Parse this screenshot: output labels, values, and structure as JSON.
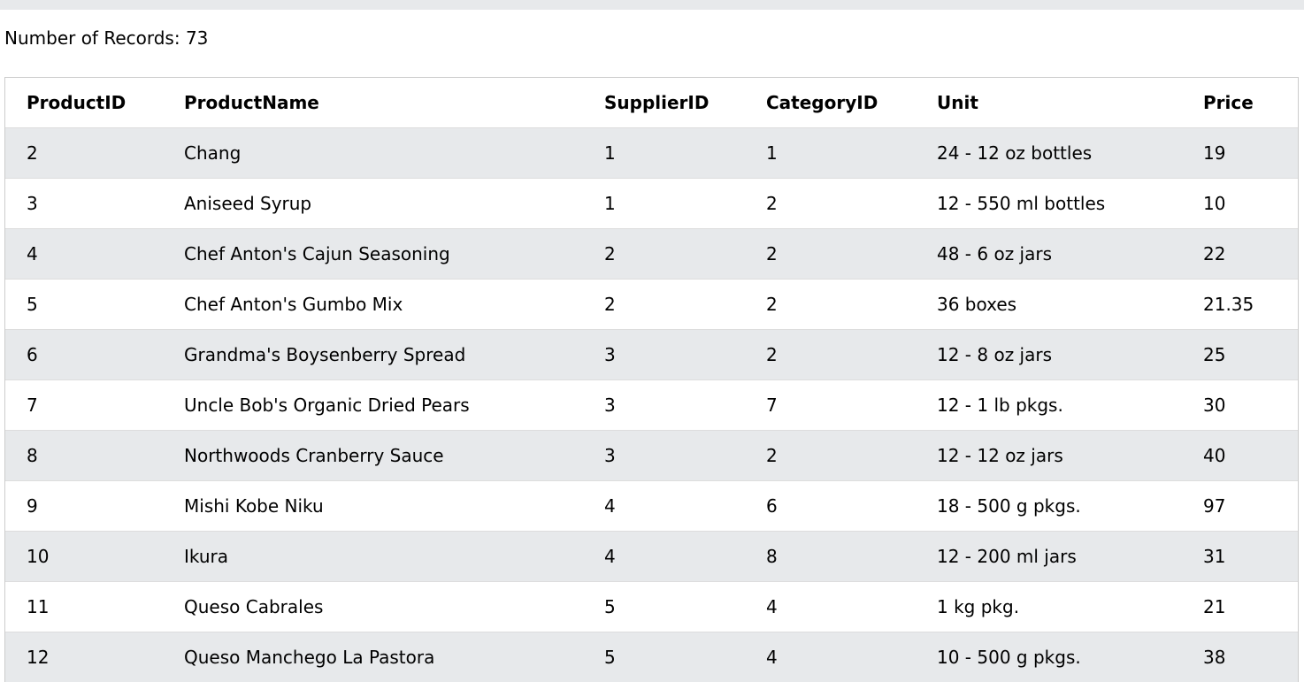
{
  "record_count_label": "Number of Records: 73",
  "colors": {
    "top_bar": "#e7e9eb",
    "row_stripe": "#e7e9eb",
    "border": "#cccccc"
  },
  "table": {
    "headers": [
      "ProductID",
      "ProductName",
      "SupplierID",
      "CategoryID",
      "Unit",
      "Price"
    ],
    "rows": [
      [
        "2",
        "Chang",
        "1",
        "1",
        "24 - 12 oz bottles",
        "19"
      ],
      [
        "3",
        "Aniseed Syrup",
        "1",
        "2",
        "12 - 550 ml bottles",
        "10"
      ],
      [
        "4",
        "Chef Anton's Cajun Seasoning",
        "2",
        "2",
        "48 - 6 oz jars",
        "22"
      ],
      [
        "5",
        "Chef Anton's Gumbo Mix",
        "2",
        "2",
        "36 boxes",
        "21.35"
      ],
      [
        "6",
        "Grandma's Boysenberry Spread",
        "3",
        "2",
        "12 - 8 oz jars",
        "25"
      ],
      [
        "7",
        "Uncle Bob's Organic Dried Pears",
        "3",
        "7",
        "12 - 1 lb pkgs.",
        "30"
      ],
      [
        "8",
        "Northwoods Cranberry Sauce",
        "3",
        "2",
        "12 - 12 oz jars",
        "40"
      ],
      [
        "9",
        "Mishi Kobe Niku",
        "4",
        "6",
        "18 - 500 g pkgs.",
        "97"
      ],
      [
        "10",
        "Ikura",
        "4",
        "8",
        "12 - 200 ml jars",
        "31"
      ],
      [
        "11",
        "Queso Cabrales",
        "5",
        "4",
        "1 kg pkg.",
        "21"
      ],
      [
        "12",
        "Queso Manchego La Pastora",
        "5",
        "4",
        "10 - 500 g pkgs.",
        "38"
      ]
    ]
  }
}
